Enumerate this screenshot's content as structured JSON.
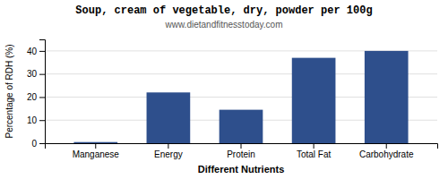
{
  "chart_data": {
    "type": "bar",
    "title": "Soup, cream of vegetable, dry, powder per 100g",
    "subtitle": "www.dietandfitnesstoday.com",
    "xlabel": "Different Nutrients",
    "ylabel": "Percentage of RDH (%)",
    "categories": [
      "Manganese",
      "Energy",
      "Protein",
      "Total Fat",
      "Carbohydrate"
    ],
    "values": [
      0.5,
      22,
      14.5,
      37,
      40
    ],
    "color": "#2e4f8c",
    "ylim": [
      0,
      45
    ],
    "yticks": [
      0,
      10,
      20,
      30,
      40
    ],
    "grid": true
  }
}
